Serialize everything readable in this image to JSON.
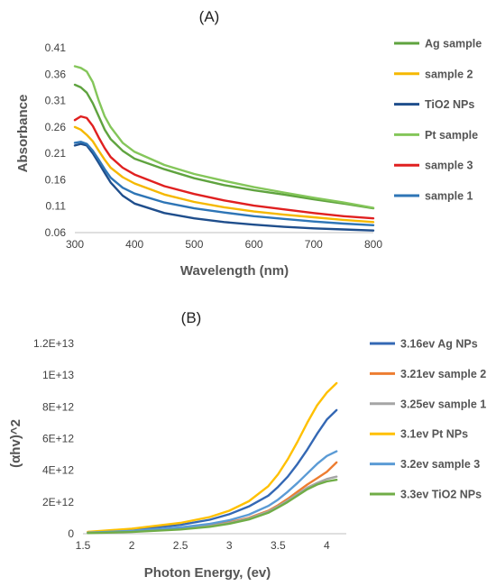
{
  "chart_data": [
    {
      "panel": "(A)",
      "type": "line",
      "xlabel": "Wavelength (nm)",
      "ylabel": "Absorbance",
      "xlim": [
        300,
        800
      ],
      "ylim": [
        0.06,
        0.41
      ],
      "xticks": [
        "300",
        "400",
        "500",
        "600",
        "700",
        "800"
      ],
      "yticks": [
        "0.06",
        "0.11",
        "0.16",
        "0.21",
        "0.26",
        "0.31",
        "0.36",
        "0.41"
      ],
      "grid": false,
      "legend_position": "right",
      "series": [
        {
          "name": "Ag sample",
          "color": "#5fa33f",
          "x": [
            300,
            310,
            320,
            330,
            340,
            350,
            360,
            380,
            400,
            450,
            500,
            550,
            600,
            650,
            700,
            750,
            800
          ],
          "y": [
            0.34,
            0.335,
            0.325,
            0.305,
            0.28,
            0.255,
            0.237,
            0.215,
            0.2,
            0.18,
            0.163,
            0.15,
            0.14,
            0.132,
            0.123,
            0.115,
            0.106
          ]
        },
        {
          "name": "sample 2",
          "color": "#f5b800",
          "x": [
            300,
            310,
            320,
            330,
            340,
            350,
            360,
            380,
            400,
            450,
            500,
            550,
            600,
            650,
            700,
            750,
            800
          ],
          "y": [
            0.26,
            0.255,
            0.245,
            0.233,
            0.215,
            0.198,
            0.183,
            0.165,
            0.153,
            0.132,
            0.118,
            0.108,
            0.1,
            0.094,
            0.089,
            0.084,
            0.08
          ]
        },
        {
          "name": "TiO2 NPs",
          "color": "#1f4e8c",
          "x": [
            300,
            310,
            320,
            330,
            340,
            350,
            360,
            380,
            400,
            450,
            500,
            550,
            600,
            650,
            700,
            750,
            800
          ],
          "y": [
            0.225,
            0.228,
            0.225,
            0.21,
            0.192,
            0.173,
            0.155,
            0.13,
            0.115,
            0.097,
            0.087,
            0.08,
            0.075,
            0.071,
            0.068,
            0.066,
            0.064
          ]
        },
        {
          "name": "Pt sample",
          "color": "#84c65a",
          "x": [
            300,
            310,
            320,
            330,
            340,
            350,
            360,
            380,
            400,
            450,
            500,
            550,
            600,
            650,
            700,
            750,
            800
          ],
          "y": [
            0.375,
            0.372,
            0.365,
            0.345,
            0.31,
            0.28,
            0.26,
            0.23,
            0.213,
            0.188,
            0.171,
            0.158,
            0.146,
            0.136,
            0.126,
            0.117,
            0.107
          ]
        },
        {
          "name": "sample 3",
          "color": "#e02020",
          "x": [
            300,
            310,
            320,
            330,
            340,
            350,
            360,
            380,
            400,
            450,
            500,
            550,
            600,
            650,
            700,
            750,
            800
          ],
          "y": [
            0.273,
            0.28,
            0.277,
            0.262,
            0.24,
            0.22,
            0.203,
            0.183,
            0.17,
            0.148,
            0.133,
            0.121,
            0.111,
            0.104,
            0.097,
            0.091,
            0.087
          ]
        },
        {
          "name": "sample 1",
          "color": "#2e75b6",
          "x": [
            300,
            310,
            320,
            330,
            340,
            350,
            360,
            380,
            400,
            450,
            500,
            550,
            600,
            650,
            700,
            750,
            800
          ],
          "y": [
            0.23,
            0.232,
            0.228,
            0.215,
            0.198,
            0.18,
            0.164,
            0.145,
            0.134,
            0.117,
            0.106,
            0.098,
            0.091,
            0.086,
            0.081,
            0.077,
            0.074
          ]
        }
      ]
    },
    {
      "panel": "(B)",
      "type": "line",
      "xlabel": "Photon Energy, (ev)",
      "ylabel": "(αhv)^2",
      "xlim": [
        1.5,
        4.2
      ],
      "ylim": [
        0,
        12000000000000
      ],
      "xticks": [
        "1.5",
        "2",
        "2.5",
        "3",
        "3.5",
        "4"
      ],
      "xtick_values": [
        1.5,
        2,
        2.5,
        3,
        3.5,
        4
      ],
      "yticks": [
        "0",
        "2E+12",
        "4E+12",
        "6E+12",
        "8E+12",
        "1E+13",
        "1.2E+13"
      ],
      "ytick_values": [
        0,
        2000000000000,
        4000000000000,
        6000000000000,
        8000000000000,
        10000000000000,
        12000000000000
      ],
      "grid": false,
      "legend_position": "right",
      "series": [
        {
          "name": "3.16ev Ag NPs",
          "color": "#3468b4",
          "x": [
            1.55,
            2.0,
            2.5,
            2.8,
            3.0,
            3.2,
            3.4,
            3.5,
            3.6,
            3.7,
            3.8,
            3.9,
            4.0,
            4.1
          ],
          "y": [
            100000000000,
            260000000000,
            560000000000,
            880000000000,
            1230000000000,
            1720000000000,
            2400000000000,
            2950000000000,
            3600000000000,
            4400000000000,
            5300000000000,
            6300000000000,
            7200000000000,
            7800000000000
          ]
        },
        {
          "name": "3.21ev sample 2",
          "color": "#ed7d31",
          "x": [
            1.55,
            2.0,
            2.5,
            2.8,
            3.0,
            3.2,
            3.4,
            3.5,
            3.6,
            3.7,
            3.8,
            3.9,
            4.0,
            4.1
          ],
          "y": [
            60000000000,
            150000000000,
            330000000000,
            520000000000,
            720000000000,
            1000000000000,
            1450000000000,
            1800000000000,
            2200000000000,
            2650000000000,
            3100000000000,
            3500000000000,
            3900000000000,
            4500000000000
          ]
        },
        {
          "name": "3.25ev sample 1",
          "color": "#a5a5a5",
          "x": [
            1.55,
            2.0,
            2.5,
            2.8,
            3.0,
            3.2,
            3.4,
            3.5,
            3.6,
            3.7,
            3.8,
            3.9,
            4.0,
            4.1
          ],
          "y": [
            50000000000,
            130000000000,
            300000000000,
            480000000000,
            680000000000,
            960000000000,
            1400000000000,
            1730000000000,
            2100000000000,
            2500000000000,
            2900000000000,
            3200000000000,
            3450000000000,
            3600000000000
          ]
        },
        {
          "name": "3.1ev Pt NPs",
          "color": "#ffc000",
          "x": [
            1.55,
            2.0,
            2.5,
            2.8,
            3.0,
            3.2,
            3.4,
            3.5,
            3.6,
            3.7,
            3.8,
            3.9,
            4.0,
            4.1
          ],
          "y": [
            120000000000,
            320000000000,
            680000000000,
            1050000000000,
            1450000000000,
            2050000000000,
            3000000000000,
            3750000000000,
            4700000000000,
            5800000000000,
            7000000000000,
            8100000000000,
            8900000000000,
            9500000000000
          ]
        },
        {
          "name": "3.2ev sample 3",
          "color": "#5b9bd5",
          "x": [
            1.55,
            2.0,
            2.5,
            2.8,
            3.0,
            3.2,
            3.4,
            3.5,
            3.6,
            3.7,
            3.8,
            3.9,
            4.0,
            4.1
          ],
          "y": [
            70000000000,
            180000000000,
            400000000000,
            620000000000,
            850000000000,
            1200000000000,
            1750000000000,
            2150000000000,
            2650000000000,
            3200000000000,
            3800000000000,
            4400000000000,
            4900000000000,
            5200000000000
          ]
        },
        {
          "name": "3.3ev TiO2 NPs",
          "color": "#70ad47",
          "x": [
            1.55,
            2.0,
            2.5,
            2.8,
            3.0,
            3.2,
            3.4,
            3.5,
            3.6,
            3.7,
            3.8,
            3.9,
            4.0,
            4.1
          ],
          "y": [
            40000000000,
            110000000000,
            270000000000,
            440000000000,
            630000000000,
            900000000000,
            1320000000000,
            1650000000000,
            2000000000000,
            2400000000000,
            2800000000000,
            3100000000000,
            3300000000000,
            3400000000000
          ]
        }
      ]
    }
  ]
}
